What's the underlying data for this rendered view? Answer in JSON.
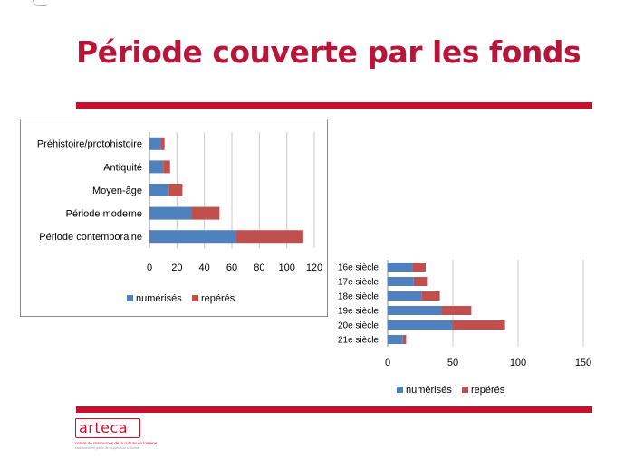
{
  "slide": {
    "title": "Période couverte par les fonds"
  },
  "logo": {
    "name": "arteca",
    "tagline": "centre de ressources de la culture en lorraine",
    "subline": "établissement public de coopération culturelle"
  },
  "colors": {
    "accent": "#c8102e",
    "title": "#b5163a",
    "numerises": "#4f81bd",
    "reperes": "#c0504d"
  },
  "chart_data": [
    {
      "type": "bar",
      "orientation": "horizontal",
      "stacked": true,
      "categories": [
        "Préhistoire/protohistoire",
        "Antiquité",
        "Moyen-âge",
        "Période moderne",
        "Période contemporaine"
      ],
      "series": [
        {
          "name": "numérisés",
          "values": [
            8,
            10,
            14,
            31,
            63
          ]
        },
        {
          "name": "repérés",
          "values": [
            3,
            5,
            10,
            20,
            49
          ]
        }
      ],
      "xlim": [
        0,
        120
      ],
      "xticks": [
        "0",
        "20",
        "40",
        "60",
        "80",
        "100",
        "120"
      ],
      "grid": true,
      "legend": "bottom"
    },
    {
      "type": "bar",
      "orientation": "horizontal",
      "stacked": true,
      "categories": [
        "16e siècle",
        "17e siècle",
        "18e siècle",
        "19e siècle",
        "20e siècle",
        "21e siècle"
      ],
      "series": [
        {
          "name": "numérisés",
          "values": [
            23,
            24,
            31,
            50,
            60,
            14
          ]
        },
        {
          "name": "repérés",
          "values": [
            12,
            13,
            17,
            27,
            48,
            3
          ]
        }
      ],
      "xlim": [
        0,
        180
      ],
      "xticks": [
        "0",
        "50",
        "100",
        "150"
      ],
      "grid": true,
      "legend": "bottom"
    }
  ]
}
